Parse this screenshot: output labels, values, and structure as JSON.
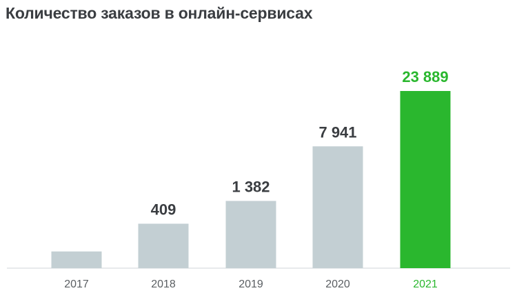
{
  "chart_data": {
    "type": "bar",
    "title": "Количество заказов в онлайн-сервисах",
    "categories": [
      "2017",
      "2018",
      "2019",
      "2020",
      "2021"
    ],
    "values": [
      23,
      409,
      1382,
      7941,
      23889
    ],
    "value_labels": [
      "",
      "409",
      "1 382",
      "7 941",
      "23 889"
    ],
    "highlight_index": 4,
    "xlabel": "",
    "ylabel": "",
    "grid": false,
    "axis_scale": "nonlinear (visual only)",
    "colors": {
      "bar": "#c3cfd3",
      "highlight": "#2ab72e",
      "label": "#3a3d41",
      "tick": "#5a5e62",
      "axis": "#cfd6d9"
    }
  }
}
